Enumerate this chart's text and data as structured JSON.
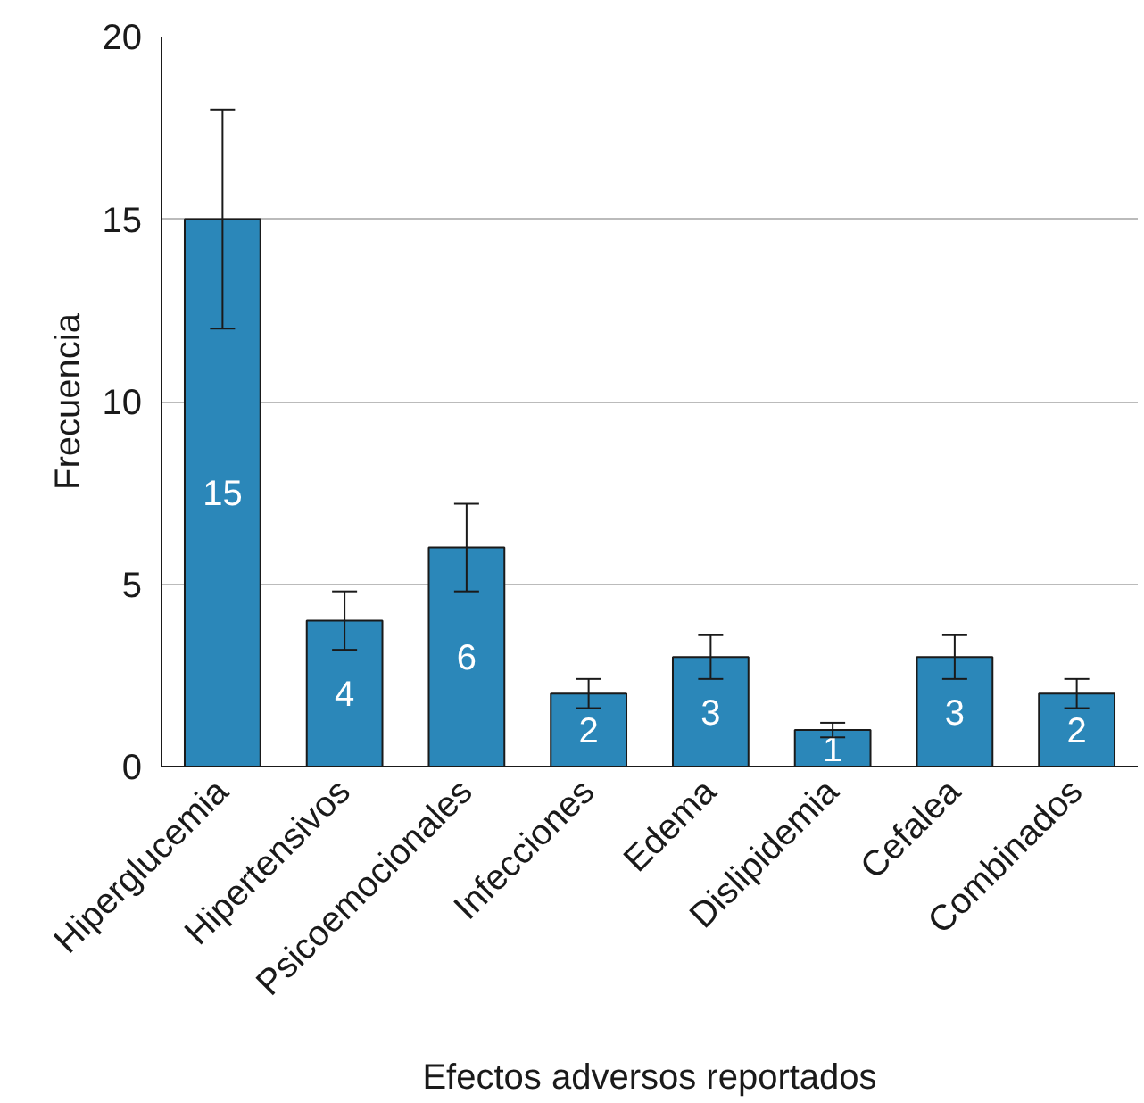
{
  "chart_data": {
    "type": "bar",
    "xlabel": "Efectos adversos reportados",
    "ylabel": "Frecuencia",
    "categories": [
      "Hiperglucemia",
      "Hipertensivos",
      "Psicoemocionales",
      "Infecciones",
      "Edema",
      "Dislipidemia",
      "Cefalea",
      "Combinados"
    ],
    "values": [
      15,
      4,
      6,
      2,
      3,
      1,
      3,
      2
    ],
    "errors": [
      3,
      0.8,
      1.2,
      0.4,
      0.6,
      0.2,
      0.6,
      0.4
    ],
    "color": "#2b87b9",
    "ylim": [
      0,
      20
    ],
    "yticks": [
      0,
      5,
      10,
      15,
      20
    ],
    "grid": "y",
    "data_labels": true
  }
}
